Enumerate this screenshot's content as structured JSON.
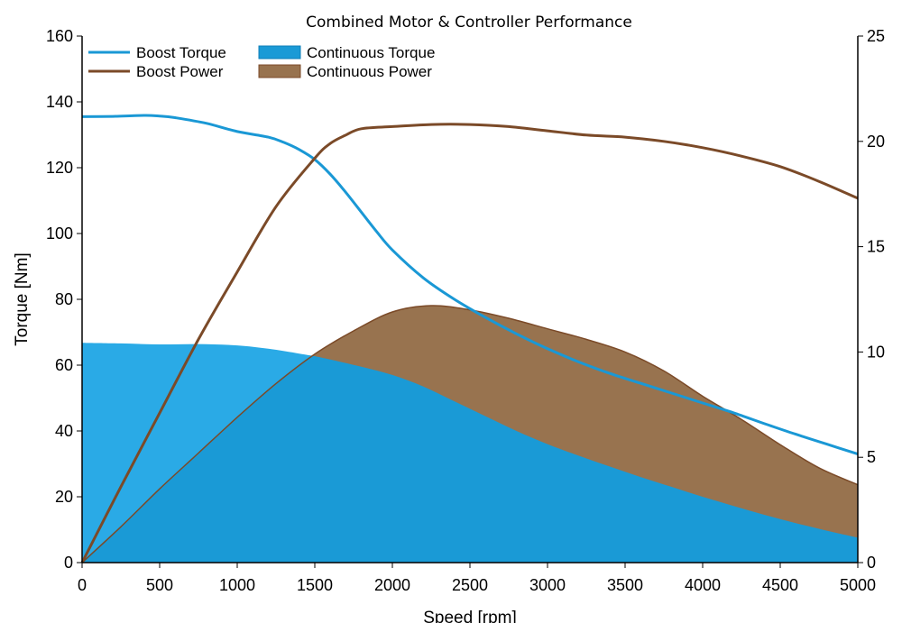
{
  "chart_data": {
    "type": "line",
    "title": "Combined Motor & Controller Performance",
    "xlabel": "Speed [rpm]",
    "ylabel": "Torque [Nm]",
    "y2label": "",
    "xlim": [
      0,
      5000
    ],
    "ylim": [
      0,
      160
    ],
    "y2lim": [
      0,
      25
    ],
    "x_ticks": [
      0,
      500,
      1000,
      1500,
      2000,
      2500,
      3000,
      3500,
      4000,
      4500,
      5000
    ],
    "y_ticks": [
      0,
      20,
      40,
      60,
      80,
      100,
      120,
      140,
      160
    ],
    "y2_ticks": [
      0,
      5,
      10,
      15,
      20,
      25
    ],
    "grid": false,
    "legend_position": "top-left",
    "colors": {
      "torque": "#1a98d5",
      "torque_fill": "#1a9ad6",
      "torque_fill_light": "#2aaae6",
      "power": "#7b4a28",
      "power_fill": "#98734f"
    },
    "series": [
      {
        "name": "Boost Torque",
        "kind": "line",
        "axis": "left",
        "x": [
          0,
          200,
          400,
          500,
          600,
          800,
          1000,
          1200,
          1300,
          1400,
          1500,
          1600,
          1700,
          1800,
          1900,
          2000,
          2200,
          2400,
          2600,
          2800,
          3000,
          3200,
          3400,
          3600,
          3800,
          4000,
          4200,
          4400,
          4600,
          4800,
          5000
        ],
        "values": [
          135.5,
          135.6,
          135.9,
          135.7,
          135.2,
          133.5,
          131.0,
          129.3,
          127.7,
          125.5,
          122.5,
          118.0,
          112.5,
          106.5,
          100.5,
          95.0,
          86.5,
          80.0,
          74.5,
          69.5,
          65.0,
          61.0,
          57.5,
          54.5,
          51.5,
          48.5,
          45.5,
          42.2,
          39.0,
          36.0,
          33.0
        ]
      },
      {
        "name": "Boost Power",
        "kind": "line",
        "axis": "right",
        "x": [
          0,
          250,
          500,
          750,
          1000,
          1250,
          1500,
          1600,
          1700,
          1800,
          2000,
          2250,
          2500,
          2750,
          3000,
          3250,
          3500,
          3750,
          4000,
          4250,
          4500,
          4750,
          5000
        ],
        "values": [
          0,
          3.6,
          7.1,
          10.6,
          13.8,
          16.9,
          19.2,
          19.9,
          20.3,
          20.6,
          20.7,
          20.8,
          20.8,
          20.7,
          20.5,
          20.3,
          20.2,
          20.0,
          19.7,
          19.3,
          18.8,
          18.1,
          17.3
        ]
      },
      {
        "name": "Continuous Torque",
        "kind": "area",
        "axis": "left",
        "x": [
          0,
          250,
          500,
          750,
          1000,
          1200,
          1400,
          1500,
          1600,
          1800,
          2000,
          2200,
          2400,
          2600,
          2800,
          3000,
          3200,
          3400,
          3600,
          3800,
          4000,
          4200,
          4400,
          4600,
          4800,
          5000
        ],
        "values": [
          66.8,
          66.6,
          66.3,
          66.4,
          66.0,
          65.0,
          63.5,
          62.7,
          61.7,
          59.5,
          57.0,
          53.5,
          49.0,
          44.5,
          40.0,
          36.0,
          32.5,
          29.2,
          26.0,
          23.0,
          20.0,
          17.2,
          14.5,
          12.0,
          9.7,
          7.6
        ]
      },
      {
        "name": "Continuous Power",
        "kind": "area",
        "axis": "right",
        "x": [
          0,
          250,
          500,
          750,
          1000,
          1250,
          1500,
          1750,
          2000,
          2250,
          2500,
          2750,
          3000,
          3250,
          3500,
          3750,
          4000,
          4250,
          4500,
          4750,
          5000
        ],
        "values": [
          0,
          1.7,
          3.5,
          5.2,
          6.9,
          8.5,
          9.9,
          11.0,
          11.9,
          12.2,
          12.0,
          11.6,
          11.1,
          10.6,
          10.0,
          9.1,
          7.9,
          6.8,
          5.6,
          4.5,
          3.7
        ]
      }
    ]
  }
}
